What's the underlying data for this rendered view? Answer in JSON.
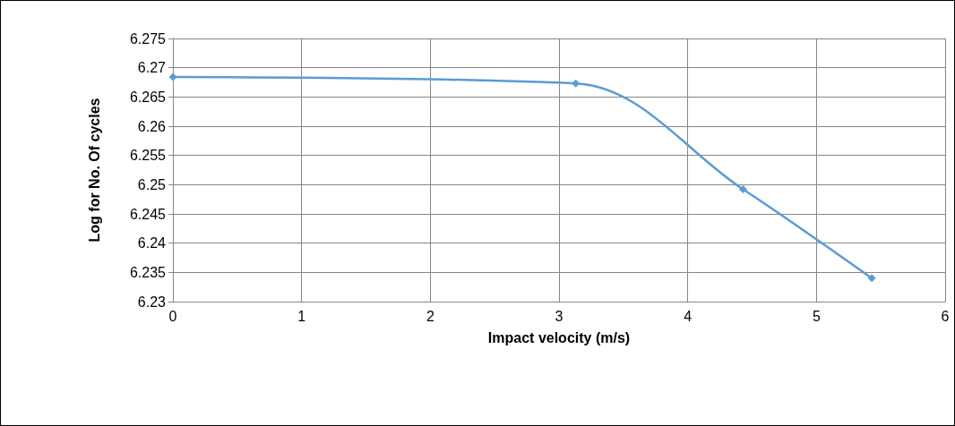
{
  "chart_data": {
    "type": "line",
    "xlabel": "Impact velocity (m/s)",
    "ylabel": "Log for No. Of cycles",
    "x": [
      0,
      3.13,
      4.43,
      5.43
    ],
    "series": [
      {
        "color": "#5b9bd5",
        "values": [
          6.2684,
          6.2673,
          6.2492,
          6.234
        ]
      }
    ],
    "xlim": [
      0,
      6
    ],
    "xticks": [
      0,
      1,
      2,
      3,
      4,
      5,
      6
    ],
    "ylim": [
      6.23,
      6.275
    ],
    "yticks": [
      6.23,
      6.235,
      6.24,
      6.245,
      6.25,
      6.255,
      6.26,
      6.265,
      6.27,
      6.275
    ],
    "grid": true,
    "marker": "diamond",
    "line_style": "solid"
  }
}
